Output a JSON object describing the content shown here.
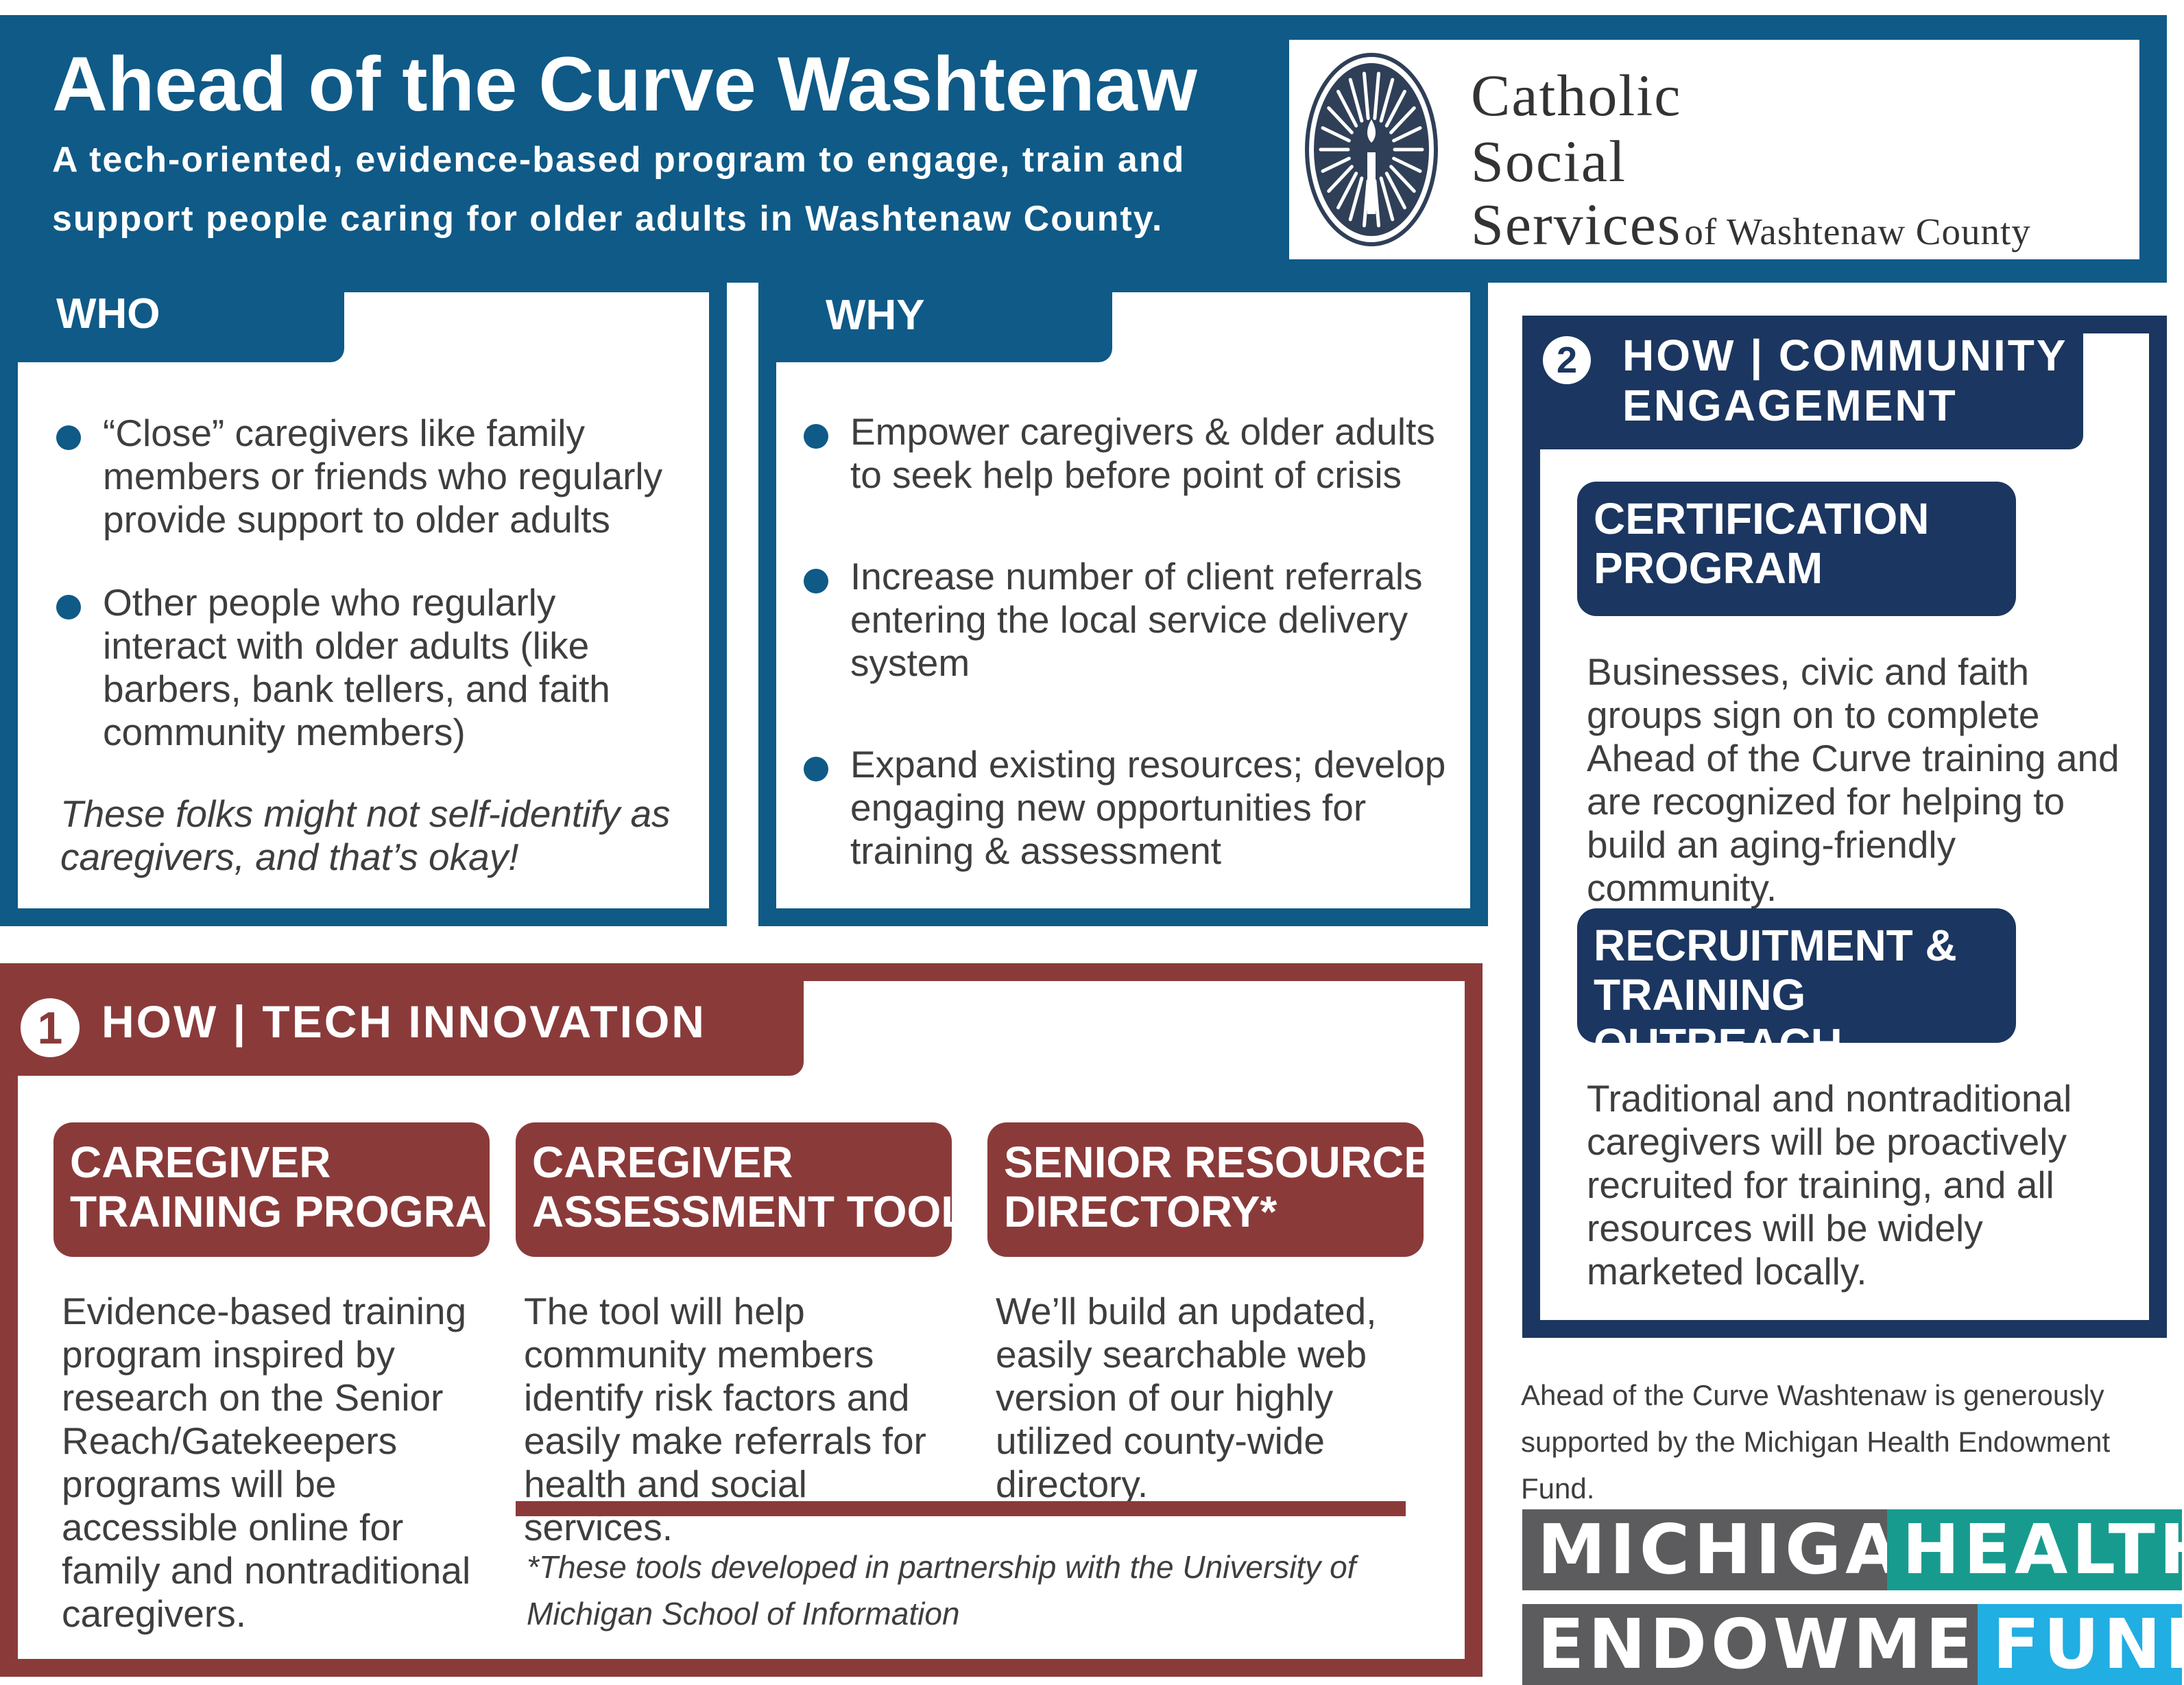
{
  "header": {
    "title": "Ahead of the Curve Washtenaw",
    "subtitle": "A tech-oriented, evidence-based program to engage, train and support people caring for older adults in Washtenaw County."
  },
  "logo": {
    "line1": "Catholic",
    "line2": "Social",
    "line3_main": "Services",
    "line3_suffix": "of Washtenaw County",
    "icon": "seal-candle-icon"
  },
  "who": {
    "heading": "WHO",
    "items": [
      "“Close” caregivers like family members or friends who regularly provide support to older adults",
      "Other people who regularly interact with older adults (like barbers, bank tellers, and faith community members)"
    ],
    "note": "These folks might not self-identify as caregivers, and that’s okay!"
  },
  "why": {
    "heading": "WHY",
    "items": [
      "Empower caregivers & older adults to seek help before point of crisis",
      "Increase number of client referrals entering the local service delivery system",
      "Expand existing resources; develop engaging new opportunities for training & assessment"
    ]
  },
  "how_tech": {
    "number": "1",
    "heading": "HOW | TECH INNOVATION",
    "cards": [
      {
        "title_line1": "CAREGIVER",
        "title_line2": "TRAINING PROGRAM",
        "text": "Evidence-based training program inspired by research on the Senior Reach/Gatekeepers programs will be accessible online for family and nontraditional caregivers."
      },
      {
        "title_line1": "CAREGIVER",
        "title_line2": "ASSESSMENT TOOL*",
        "text": "The tool will help community members identify risk factors and easily make referrals for health and social services."
      },
      {
        "title_line1": "SENIOR RESOURCE",
        "title_line2": "DIRECTORY*",
        "text": "We’ll build an updated, easily searchable web version of our highly utilized county-wide directory."
      }
    ],
    "footnote": "*These tools developed in partnership with the University of Michigan School of Information"
  },
  "how_community": {
    "number": "2",
    "heading_line1": "HOW | COMMUNITY",
    "heading_line2": "ENGAGEMENT",
    "cards": [
      {
        "title_line1": "CERTIFICATION",
        "title_line2": "PROGRAM",
        "text": "Businesses, civic and faith groups sign on to complete Ahead of the Curve training and are recognized for helping to build an aging-friendly community."
      },
      {
        "title_line1": "RECRUITMENT &",
        "title_line2": "TRAINING OUTREACH",
        "text": "Traditional and nontraditional caregivers will be proactively recruited for training, and all resources will be widely marketed locally."
      }
    ]
  },
  "support": {
    "text": "Ahead of the Curve Washtenaw is generously supported by the Michigan Health Endowment Fund.",
    "logo_michigan": "MICHIGAN",
    "logo_health": "HEALTH",
    "logo_endowment": "ENDOWMENT",
    "logo_fund": "FUND"
  },
  "colors": {
    "blue": "#0f5a87",
    "navy": "#1b3660",
    "red": "#8b3a3a",
    "text": "#3e3e3e",
    "mhef_gray": "#5c5b5d",
    "mhef_teal": "#189b8f",
    "mhef_cyan": "#21aee3"
  }
}
